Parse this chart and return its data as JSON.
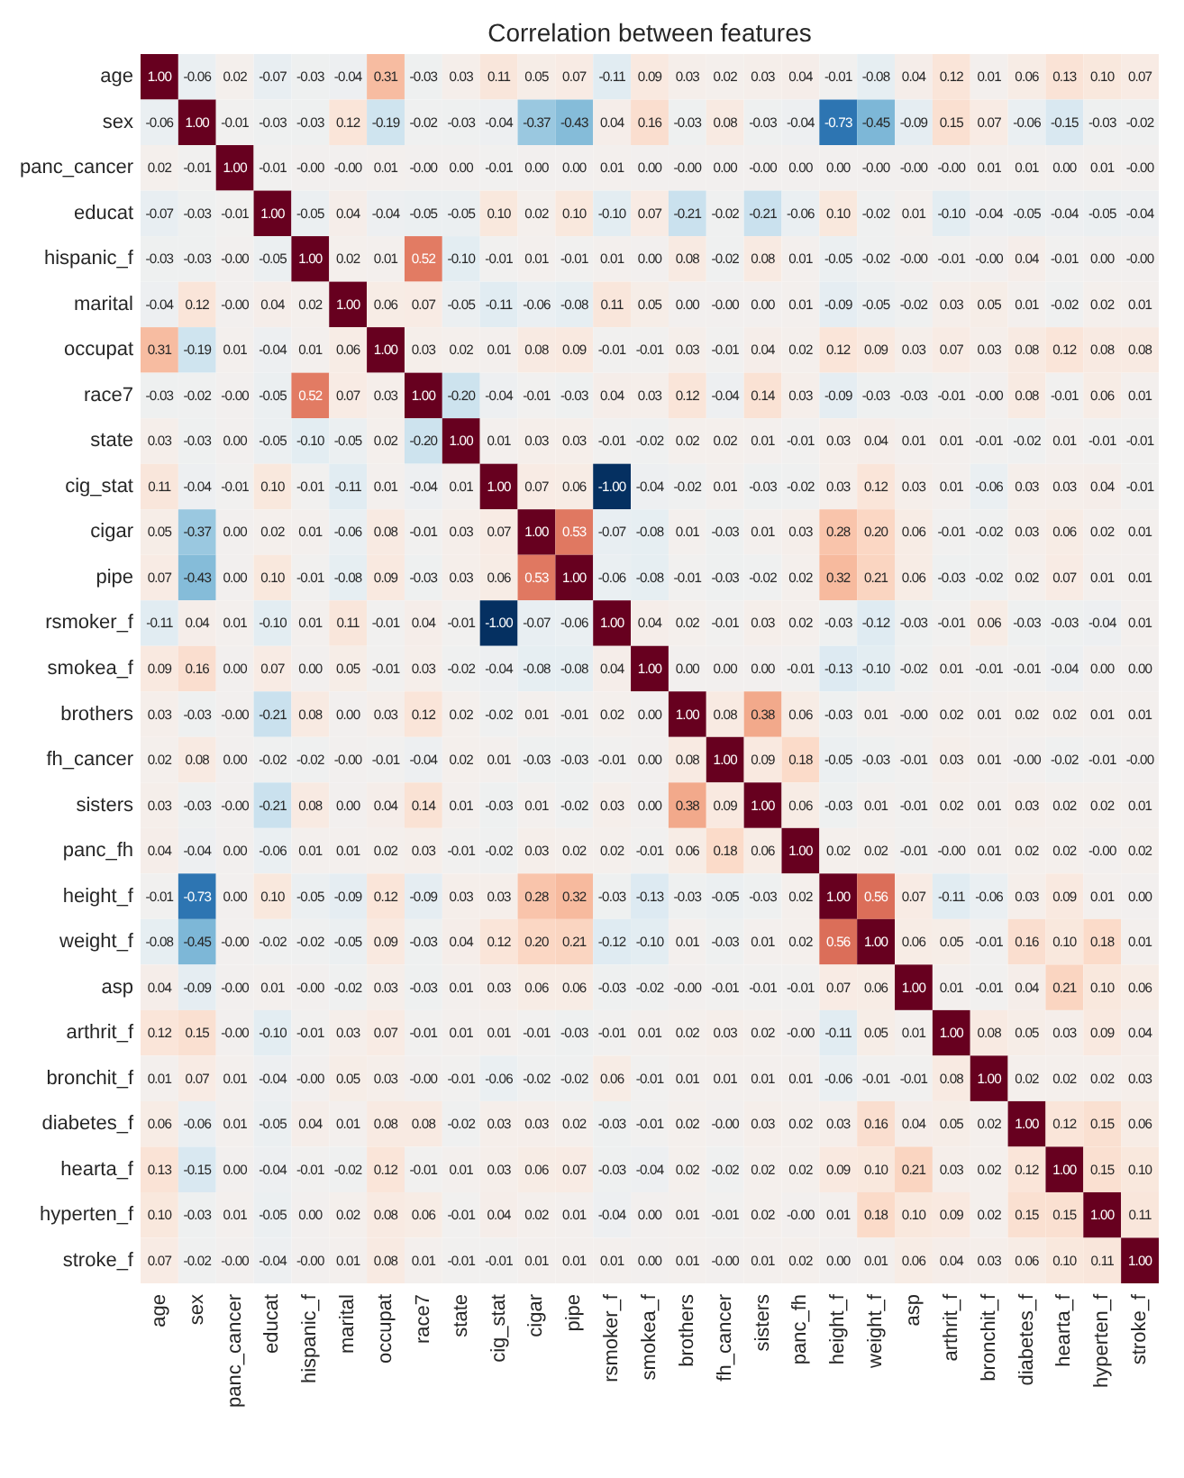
{
  "chart_data": {
    "type": "heatmap",
    "title": "Correlation between features",
    "categories": [
      "age",
      "sex",
      "panc_cancer",
      "educat",
      "hispanic_f",
      "marital",
      "occupat",
      "race7",
      "state",
      "cig_stat",
      "cigar",
      "pipe",
      "rsmoker_f",
      "smokea_f",
      "brothers",
      "fh_cancer",
      "sisters",
      "panc_fh",
      "height_f",
      "weight_f",
      "asp",
      "arthrit_f",
      "bronchit_f",
      "diabetes_f",
      "hearta_f",
      "hyperten_f",
      "stroke_f"
    ],
    "y_categories": [
      "age",
      "sex",
      "panc_cancer",
      "educat",
      "hispanic_f",
      "marital",
      "occupat",
      "race7",
      "state",
      "cig_stat",
      "cigar",
      "pipe",
      "rsmoker_f",
      "smokea_f",
      "brothers",
      "fh_cancer",
      "sisters",
      "panc_fh",
      "height_f",
      "weight_f",
      "asp",
      "arthrit_f",
      "bronchit_f",
      "diabetes_f",
      "hearta_f",
      "hyperten_f",
      "stroke_f"
    ],
    "cells": [
      [
        1,
        -0.06,
        0.02,
        -0.07,
        -0.03,
        -0.04,
        0.31,
        -0.03,
        0.03,
        0.11,
        0.05,
        0.07,
        -0.11,
        0.09,
        0.03,
        0.02,
        0.03,
        0.04,
        -0.01,
        -0.08,
        0.04,
        0.12,
        0.01,
        0.06,
        0.13,
        0.1,
        0.07
      ],
      [
        -0.06,
        1,
        -0.01,
        -0.03,
        -0.03,
        0.12,
        -0.19,
        -0.02,
        -0.03,
        -0.04,
        -0.37,
        -0.43,
        0.04,
        0.16,
        -0.03,
        0.08,
        -0.03,
        -0.04,
        -0.73,
        -0.45,
        -0.09,
        0.15,
        0.07,
        -0.06,
        -0.15,
        -0.03,
        -0.02
      ],
      [
        0.02,
        -0.01,
        1,
        -0.01,
        0,
        0,
        0.01,
        0,
        0,
        -0.01,
        0,
        0,
        0.01,
        0,
        0,
        0,
        0,
        0,
        0,
        0,
        0,
        0,
        0.01,
        0.01,
        0,
        0.01,
        0
      ],
      [
        -0.07,
        -0.03,
        -0.01,
        1,
        -0.05,
        0.04,
        -0.04,
        -0.05,
        -0.05,
        0.1,
        0.02,
        0.1,
        -0.1,
        0.07,
        -0.21,
        -0.02,
        -0.21,
        -0.06,
        0.1,
        -0.02,
        0.01,
        -0.1,
        -0.04,
        -0.05,
        -0.04,
        -0.05,
        -0.04
      ],
      [
        -0.03,
        -0.03,
        0,
        -0.05,
        1,
        0.02,
        0.01,
        0.52,
        -0.1,
        -0.01,
        0.01,
        -0.01,
        0.01,
        0,
        0.08,
        -0.02,
        0.08,
        0.01,
        -0.05,
        -0.02,
        0,
        -0.01,
        0,
        0.04,
        -0.01,
        0,
        0
      ],
      [
        -0.04,
        0.12,
        0,
        0.04,
        0.02,
        1,
        0.06,
        0.07,
        -0.05,
        -0.11,
        -0.06,
        -0.08,
        0.11,
        0.05,
        0,
        0,
        0,
        0.01,
        -0.09,
        -0.05,
        -0.02,
        0.03,
        0.05,
        0.01,
        -0.02,
        0.02,
        0.01
      ],
      [
        0.31,
        -0.19,
        0.01,
        -0.04,
        0.01,
        0.06,
        1,
        0.03,
        0.02,
        0.01,
        0.08,
        0.09,
        -0.01,
        -0.01,
        0.03,
        -0.01,
        0.04,
        0.02,
        0.12,
        0.09,
        0.03,
        0.07,
        0.03,
        0.08,
        0.12,
        0.08,
        0.08
      ],
      [
        -0.03,
        -0.02,
        0,
        -0.05,
        0.52,
        0.07,
        0.03,
        1,
        -0.2,
        -0.04,
        -0.01,
        -0.03,
        0.04,
        0.03,
        0.12,
        -0.04,
        0.14,
        0.03,
        -0.09,
        -0.03,
        -0.03,
        -0.01,
        0,
        0.08,
        -0.01,
        0.06,
        0.01
      ],
      [
        0.03,
        -0.03,
        0,
        -0.05,
        -0.1,
        -0.05,
        0.02,
        -0.2,
        1,
        0.01,
        0.03,
        0.03,
        -0.01,
        -0.02,
        0.02,
        0.02,
        0.01,
        -0.01,
        0.03,
        0.04,
        0.01,
        0.01,
        -0.01,
        -0.02,
        0.01,
        -0.01,
        -0.01
      ],
      [
        0.11,
        -0.04,
        -0.01,
        0.1,
        -0.01,
        -0.11,
        0.01,
        -0.04,
        0.01,
        1,
        0.07,
        0.06,
        -1,
        -0.04,
        -0.02,
        0.01,
        -0.03,
        -0.02,
        0.03,
        0.12,
        0.03,
        0.01,
        -0.06,
        0.03,
        0.03,
        0.04,
        -0.01
      ],
      [
        0.05,
        -0.37,
        0,
        0.02,
        0.01,
        -0.06,
        0.08,
        -0.01,
        0.03,
        0.07,
        1,
        0.53,
        -0.07,
        -0.08,
        0.01,
        -0.03,
        0.01,
        0.03,
        0.28,
        0.2,
        0.06,
        -0.01,
        -0.02,
        0.03,
        0.06,
        0.02,
        0.01
      ],
      [
        0.07,
        -0.43,
        0,
        0.1,
        -0.01,
        -0.08,
        0.09,
        -0.03,
        0.03,
        0.06,
        0.53,
        1,
        -0.06,
        -0.08,
        -0.01,
        -0.03,
        -0.02,
        0.02,
        0.32,
        0.21,
        0.06,
        -0.03,
        -0.02,
        0.02,
        0.07,
        0.01,
        0.01
      ],
      [
        -0.11,
        0.04,
        0.01,
        -0.1,
        0.01,
        0.11,
        -0.01,
        0.04,
        -0.01,
        -1,
        -0.07,
        -0.06,
        1,
        0.04,
        0.02,
        -0.01,
        0.03,
        0.02,
        -0.03,
        -0.12,
        -0.03,
        -0.01,
        0.06,
        -0.03,
        -0.03,
        -0.04,
        0.01
      ],
      [
        0.09,
        0.16,
        0,
        0.07,
        0,
        0.05,
        -0.01,
        0.03,
        -0.02,
        -0.04,
        -0.08,
        -0.08,
        0.04,
        1,
        0,
        0,
        0,
        -0.01,
        -0.13,
        -0.1,
        -0.02,
        0.01,
        -0.01,
        -0.01,
        -0.04,
        0,
        0
      ],
      [
        0.03,
        -0.03,
        0,
        -0.21,
        0.08,
        0,
        0.03,
        0.12,
        0.02,
        -0.02,
        0.01,
        -0.01,
        0.02,
        0,
        1,
        0.08,
        0.38,
        0.06,
        -0.03,
        0.01,
        0,
        0.02,
        0.01,
        0.02,
        0.02,
        0.01,
        0.01
      ],
      [
        0.02,
        0.08,
        0,
        -0.02,
        -0.02,
        0,
        -0.01,
        -0.04,
        0.02,
        0.01,
        -0.03,
        -0.03,
        -0.01,
        0,
        0.08,
        1,
        0.09,
        0.18,
        -0.05,
        -0.03,
        -0.01,
        0.03,
        0.01,
        0,
        -0.02,
        -0.01,
        0
      ],
      [
        0.03,
        -0.03,
        0,
        -0.21,
        0.08,
        0,
        0.04,
        0.14,
        0.01,
        -0.03,
        0.01,
        -0.02,
        0.03,
        0,
        0.38,
        0.09,
        1,
        0.06,
        -0.03,
        0.01,
        -0.01,
        0.02,
        0.01,
        0.03,
        0.02,
        0.02,
        0.01
      ],
      [
        0.04,
        -0.04,
        0,
        -0.06,
        0.01,
        0.01,
        0.02,
        0.03,
        -0.01,
        -0.02,
        0.03,
        0.02,
        0.02,
        -0.01,
        0.06,
        0.18,
        0.06,
        1,
        0.02,
        0.02,
        -0.01,
        0,
        0.01,
        0.02,
        0.02,
        0,
        0.02
      ],
      [
        -0.01,
        -0.73,
        0,
        0.1,
        -0.05,
        -0.09,
        0.12,
        -0.09,
        0.03,
        0.03,
        0.28,
        0.32,
        -0.03,
        -0.13,
        -0.03,
        -0.05,
        -0.03,
        0.02,
        1,
        0.56,
        0.07,
        -0.11,
        -0.06,
        0.03,
        0.09,
        0.01,
        0
      ],
      [
        -0.08,
        -0.45,
        0,
        -0.02,
        -0.02,
        -0.05,
        0.09,
        -0.03,
        0.04,
        0.12,
        0.2,
        0.21,
        -0.12,
        -0.1,
        0.01,
        -0.03,
        0.01,
        0.02,
        0.56,
        1,
        0.06,
        0.05,
        -0.01,
        0.16,
        0.1,
        0.18,
        0.01
      ],
      [
        0.04,
        -0.09,
        0,
        0.01,
        0,
        -0.02,
        0.03,
        -0.03,
        0.01,
        0.03,
        0.06,
        0.06,
        -0.03,
        -0.02,
        0,
        -0.01,
        -0.01,
        -0.01,
        0.07,
        0.06,
        1,
        0.01,
        -0.01,
        0.04,
        0.21,
        0.1,
        0.06
      ],
      [
        0.12,
        0.15,
        0,
        -0.1,
        -0.01,
        0.03,
        0.07,
        -0.01,
        0.01,
        0.01,
        -0.01,
        -0.03,
        -0.01,
        0.01,
        0.02,
        0.03,
        0.02,
        0,
        -0.11,
        0.05,
        0.01,
        1,
        0.08,
        0.05,
        0.03,
        0.09,
        0.04
      ],
      [
        0.01,
        0.07,
        0.01,
        -0.04,
        0,
        0.05,
        0.03,
        0,
        -0.01,
        -0.06,
        -0.02,
        -0.02,
        0.06,
        -0.01,
        0.01,
        0.01,
        0.01,
        0.01,
        -0.06,
        -0.01,
        -0.01,
        0.08,
        1,
        0.02,
        0.02,
        0.02,
        0.03
      ],
      [
        0.06,
        -0.06,
        0.01,
        -0.05,
        0.04,
        0.01,
        0.08,
        0.08,
        -0.02,
        0.03,
        0.03,
        0.02,
        -0.03,
        -0.01,
        0.02,
        0,
        0.03,
        0.02,
        0.03,
        0.16,
        0.04,
        0.05,
        0.02,
        1,
        0.12,
        0.15,
        0.06
      ],
      [
        0.13,
        -0.15,
        0,
        -0.04,
        -0.01,
        -0.02,
        0.12,
        -0.01,
        0.01,
        0.03,
        0.06,
        0.07,
        -0.03,
        -0.04,
        0.02,
        -0.02,
        0.02,
        0.02,
        0.09,
        0.1,
        0.21,
        0.03,
        0.02,
        0.12,
        1,
        0.15,
        0.1
      ],
      [
        0.1,
        -0.03,
        0.01,
        -0.05,
        0,
        0.02,
        0.08,
        0.06,
        -0.01,
        0.04,
        0.02,
        0.01,
        -0.04,
        0,
        0.01,
        -0.01,
        0.02,
        0,
        0.01,
        0.18,
        0.1,
        0.09,
        0.02,
        0.15,
        0.15,
        1,
        0.11
      ],
      [
        0.07,
        -0.02,
        0,
        -0.04,
        0,
        0.01,
        0.08,
        0.01,
        -0.01,
        -0.01,
        0.01,
        0.01,
        0.01,
        0,
        0.01,
        0,
        0.01,
        0.02,
        0,
        0.01,
        0.06,
        0.04,
        0.03,
        0.06,
        0.1,
        0.11,
        1
      ]
    ],
    "cell_labels": [
      [
        "1.00",
        "-0.06",
        "0.02",
        "-0.07",
        "-0.03",
        "-0.04",
        "0.31",
        "-0.03",
        "0.03",
        "0.11",
        "0.05",
        "0.07",
        "-0.11",
        "0.09",
        "0.03",
        "0.02",
        "0.03",
        "0.04",
        "-0.01",
        "-0.08",
        "0.04",
        "0.12",
        "0.01",
        "0.06",
        "0.13",
        "0.10",
        "0.07"
      ],
      [
        "-0.06",
        "1.00",
        "-0.01",
        "-0.03",
        "-0.03",
        "0.12",
        "-0.19",
        "-0.02",
        "-0.03",
        "-0.04",
        "-0.37",
        "-0.43",
        "0.04",
        "0.16",
        "-0.03",
        "0.08",
        "-0.03",
        "-0.04",
        "-0.73",
        "-0.45",
        "-0.09",
        "0.15",
        "0.07",
        "-0.06",
        "-0.15",
        "-0.03",
        "-0.02"
      ],
      [
        "0.02",
        "-0.01",
        "1.00",
        "-0.01",
        "-0.00",
        "-0.00",
        "0.01",
        "-0.00",
        "0.00",
        "-0.01",
        "0.00",
        "0.00",
        "0.01",
        "0.00",
        "-0.00",
        "0.00",
        "-0.00",
        "0.00",
        "0.00",
        "-0.00",
        "-0.00",
        "-0.00",
        "0.01",
        "0.01",
        "0.00",
        "0.01",
        "-0.00"
      ],
      [
        "-0.07",
        "-0.03",
        "-0.01",
        "1.00",
        "-0.05",
        "0.04",
        "-0.04",
        "-0.05",
        "-0.05",
        "0.10",
        "0.02",
        "0.10",
        "-0.10",
        "0.07",
        "-0.21",
        "-0.02",
        "-0.21",
        "-0.06",
        "0.10",
        "-0.02",
        "0.01",
        "-0.10",
        "-0.04",
        "-0.05",
        "-0.04",
        "-0.05",
        "-0.04"
      ],
      [
        "-0.03",
        "-0.03",
        "-0.00",
        "-0.05",
        "1.00",
        "0.02",
        "0.01",
        "0.52",
        "-0.10",
        "-0.01",
        "0.01",
        "-0.01",
        "0.01",
        "0.00",
        "0.08",
        "-0.02",
        "0.08",
        "0.01",
        "-0.05",
        "-0.02",
        "-0.00",
        "-0.01",
        "-0.00",
        "0.04",
        "-0.01",
        "0.00",
        "-0.00"
      ],
      [
        "-0.04",
        "0.12",
        "-0.00",
        "0.04",
        "0.02",
        "1.00",
        "0.06",
        "0.07",
        "-0.05",
        "-0.11",
        "-0.06",
        "-0.08",
        "0.11",
        "0.05",
        "0.00",
        "-0.00",
        "0.00",
        "0.01",
        "-0.09",
        "-0.05",
        "-0.02",
        "0.03",
        "0.05",
        "0.01",
        "-0.02",
        "0.02",
        "0.01"
      ],
      [
        "0.31",
        "-0.19",
        "0.01",
        "-0.04",
        "0.01",
        "0.06",
        "1.00",
        "0.03",
        "0.02",
        "0.01",
        "0.08",
        "0.09",
        "-0.01",
        "-0.01",
        "0.03",
        "-0.01",
        "0.04",
        "0.02",
        "0.12",
        "0.09",
        "0.03",
        "0.07",
        "0.03",
        "0.08",
        "0.12",
        "0.08",
        "0.08"
      ],
      [
        "-0.03",
        "-0.02",
        "-0.00",
        "-0.05",
        "0.52",
        "0.07",
        "0.03",
        "1.00",
        "-0.20",
        "-0.04",
        "-0.01",
        "-0.03",
        "0.04",
        "0.03",
        "0.12",
        "-0.04",
        "0.14",
        "0.03",
        "-0.09",
        "-0.03",
        "-0.03",
        "-0.01",
        "-0.00",
        "0.08",
        "-0.01",
        "0.06",
        "0.01"
      ],
      [
        "0.03",
        "-0.03",
        "0.00",
        "-0.05",
        "-0.10",
        "-0.05",
        "0.02",
        "-0.20",
        "1.00",
        "0.01",
        "0.03",
        "0.03",
        "-0.01",
        "-0.02",
        "0.02",
        "0.02",
        "0.01",
        "-0.01",
        "0.03",
        "0.04",
        "0.01",
        "0.01",
        "-0.01",
        "-0.02",
        "0.01",
        "-0.01",
        "-0.01"
      ],
      [
        "0.11",
        "-0.04",
        "-0.01",
        "0.10",
        "-0.01",
        "-0.11",
        "0.01",
        "-0.04",
        "0.01",
        "1.00",
        "0.07",
        "0.06",
        "-1.00",
        "-0.04",
        "-0.02",
        "0.01",
        "-0.03",
        "-0.02",
        "0.03",
        "0.12",
        "0.03",
        "0.01",
        "-0.06",
        "0.03",
        "0.03",
        "0.04",
        "-0.01"
      ],
      [
        "0.05",
        "-0.37",
        "0.00",
        "0.02",
        "0.01",
        "-0.06",
        "0.08",
        "-0.01",
        "0.03",
        "0.07",
        "1.00",
        "0.53",
        "-0.07",
        "-0.08",
        "0.01",
        "-0.03",
        "0.01",
        "0.03",
        "0.28",
        "0.20",
        "0.06",
        "-0.01",
        "-0.02",
        "0.03",
        "0.06",
        "0.02",
        "0.01"
      ],
      [
        "0.07",
        "-0.43",
        "0.00",
        "0.10",
        "-0.01",
        "-0.08",
        "0.09",
        "-0.03",
        "0.03",
        "0.06",
        "0.53",
        "1.00",
        "-0.06",
        "-0.08",
        "-0.01",
        "-0.03",
        "-0.02",
        "0.02",
        "0.32",
        "0.21",
        "0.06",
        "-0.03",
        "-0.02",
        "0.02",
        "0.07",
        "0.01",
        "0.01"
      ],
      [
        "-0.11",
        "0.04",
        "0.01",
        "-0.10",
        "0.01",
        "0.11",
        "-0.01",
        "0.04",
        "-0.01",
        "-1.00",
        "-0.07",
        "-0.06",
        "1.00",
        "0.04",
        "0.02",
        "-0.01",
        "0.03",
        "0.02",
        "-0.03",
        "-0.12",
        "-0.03",
        "-0.01",
        "0.06",
        "-0.03",
        "-0.03",
        "-0.04",
        "0.01"
      ],
      [
        "0.09",
        "0.16",
        "0.00",
        "0.07",
        "0.00",
        "0.05",
        "-0.01",
        "0.03",
        "-0.02",
        "-0.04",
        "-0.08",
        "-0.08",
        "0.04",
        "1.00",
        "0.00",
        "0.00",
        "0.00",
        "-0.01",
        "-0.13",
        "-0.10",
        "-0.02",
        "0.01",
        "-0.01",
        "-0.01",
        "-0.04",
        "0.00",
        "0.00"
      ],
      [
        "0.03",
        "-0.03",
        "-0.00",
        "-0.21",
        "0.08",
        "0.00",
        "0.03",
        "0.12",
        "0.02",
        "-0.02",
        "0.01",
        "-0.01",
        "0.02",
        "0.00",
        "1.00",
        "0.08",
        "0.38",
        "0.06",
        "-0.03",
        "0.01",
        "-0.00",
        "0.02",
        "0.01",
        "0.02",
        "0.02",
        "0.01",
        "0.01"
      ],
      [
        "0.02",
        "0.08",
        "0.00",
        "-0.02",
        "-0.02",
        "-0.00",
        "-0.01",
        "-0.04",
        "0.02",
        "0.01",
        "-0.03",
        "-0.03",
        "-0.01",
        "0.00",
        "0.08",
        "1.00",
        "0.09",
        "0.18",
        "-0.05",
        "-0.03",
        "-0.01",
        "0.03",
        "0.01",
        "-0.00",
        "-0.02",
        "-0.01",
        "-0.00"
      ],
      [
        "0.03",
        "-0.03",
        "-0.00",
        "-0.21",
        "0.08",
        "0.00",
        "0.04",
        "0.14",
        "0.01",
        "-0.03",
        "0.01",
        "-0.02",
        "0.03",
        "0.00",
        "0.38",
        "0.09",
        "1.00",
        "0.06",
        "-0.03",
        "0.01",
        "-0.01",
        "0.02",
        "0.01",
        "0.03",
        "0.02",
        "0.02",
        "0.01"
      ],
      [
        "0.04",
        "-0.04",
        "0.00",
        "-0.06",
        "0.01",
        "0.01",
        "0.02",
        "0.03",
        "-0.01",
        "-0.02",
        "0.03",
        "0.02",
        "0.02",
        "-0.01",
        "0.06",
        "0.18",
        "0.06",
        "1.00",
        "0.02",
        "0.02",
        "-0.01",
        "-0.00",
        "0.01",
        "0.02",
        "0.02",
        "-0.00",
        "0.02"
      ],
      [
        "-0.01",
        "-0.73",
        "0.00",
        "0.10",
        "-0.05",
        "-0.09",
        "0.12",
        "-0.09",
        "0.03",
        "0.03",
        "0.28",
        "0.32",
        "-0.03",
        "-0.13",
        "-0.03",
        "-0.05",
        "-0.03",
        "0.02",
        "1.00",
        "0.56",
        "0.07",
        "-0.11",
        "-0.06",
        "0.03",
        "0.09",
        "0.01",
        "0.00"
      ],
      [
        "-0.08",
        "-0.45",
        "-0.00",
        "-0.02",
        "-0.02",
        "-0.05",
        "0.09",
        "-0.03",
        "0.04",
        "0.12",
        "0.20",
        "0.21",
        "-0.12",
        "-0.10",
        "0.01",
        "-0.03",
        "0.01",
        "0.02",
        "0.56",
        "1.00",
        "0.06",
        "0.05",
        "-0.01",
        "0.16",
        "0.10",
        "0.18",
        "0.01"
      ],
      [
        "0.04",
        "-0.09",
        "-0.00",
        "0.01",
        "-0.00",
        "-0.02",
        "0.03",
        "-0.03",
        "0.01",
        "0.03",
        "0.06",
        "0.06",
        "-0.03",
        "-0.02",
        "-0.00",
        "-0.01",
        "-0.01",
        "-0.01",
        "0.07",
        "0.06",
        "1.00",
        "0.01",
        "-0.01",
        "0.04",
        "0.21",
        "0.10",
        "0.06"
      ],
      [
        "0.12",
        "0.15",
        "-0.00",
        "-0.10",
        "-0.01",
        "0.03",
        "0.07",
        "-0.01",
        "0.01",
        "0.01",
        "-0.01",
        "-0.03",
        "-0.01",
        "0.01",
        "0.02",
        "0.03",
        "0.02",
        "-0.00",
        "-0.11",
        "0.05",
        "0.01",
        "1.00",
        "0.08",
        "0.05",
        "0.03",
        "0.09",
        "0.04"
      ],
      [
        "0.01",
        "0.07",
        "0.01",
        "-0.04",
        "-0.00",
        "0.05",
        "0.03",
        "-0.00",
        "-0.01",
        "-0.06",
        "-0.02",
        "-0.02",
        "0.06",
        "-0.01",
        "0.01",
        "0.01",
        "0.01",
        "0.01",
        "-0.06",
        "-0.01",
        "-0.01",
        "0.08",
        "1.00",
        "0.02",
        "0.02",
        "0.02",
        "0.03"
      ],
      [
        "0.06",
        "-0.06",
        "0.01",
        "-0.05",
        "0.04",
        "0.01",
        "0.08",
        "0.08",
        "-0.02",
        "0.03",
        "0.03",
        "0.02",
        "-0.03",
        "-0.01",
        "0.02",
        "-0.00",
        "0.03",
        "0.02",
        "0.03",
        "0.16",
        "0.04",
        "0.05",
        "0.02",
        "1.00",
        "0.12",
        "0.15",
        "0.06"
      ],
      [
        "0.13",
        "-0.15",
        "0.00",
        "-0.04",
        "-0.01",
        "-0.02",
        "0.12",
        "-0.01",
        "0.01",
        "0.03",
        "0.06",
        "0.07",
        "-0.03",
        "-0.04",
        "0.02",
        "-0.02",
        "0.02",
        "0.02",
        "0.09",
        "0.10",
        "0.21",
        "0.03",
        "0.02",
        "0.12",
        "1.00",
        "0.15",
        "0.10"
      ],
      [
        "0.10",
        "-0.03",
        "0.01",
        "-0.05",
        "0.00",
        "0.02",
        "0.08",
        "0.06",
        "-0.01",
        "0.04",
        "0.02",
        "0.01",
        "-0.04",
        "0.00",
        "0.01",
        "-0.01",
        "0.02",
        "-0.00",
        "0.01",
        "0.18",
        "0.10",
        "0.09",
        "0.02",
        "0.15",
        "0.15",
        "1.00",
        "0.11"
      ],
      [
        "0.07",
        "-0.02",
        "-0.00",
        "-0.04",
        "-0.00",
        "0.01",
        "0.08",
        "0.01",
        "-0.01",
        "-0.01",
        "0.01",
        "0.01",
        "0.01",
        "0.00",
        "0.01",
        "-0.00",
        "0.01",
        "0.02",
        "0.00",
        "0.01",
        "0.06",
        "0.04",
        "0.03",
        "0.06",
        "0.10",
        "0.11",
        "1.00"
      ]
    ]
  }
}
